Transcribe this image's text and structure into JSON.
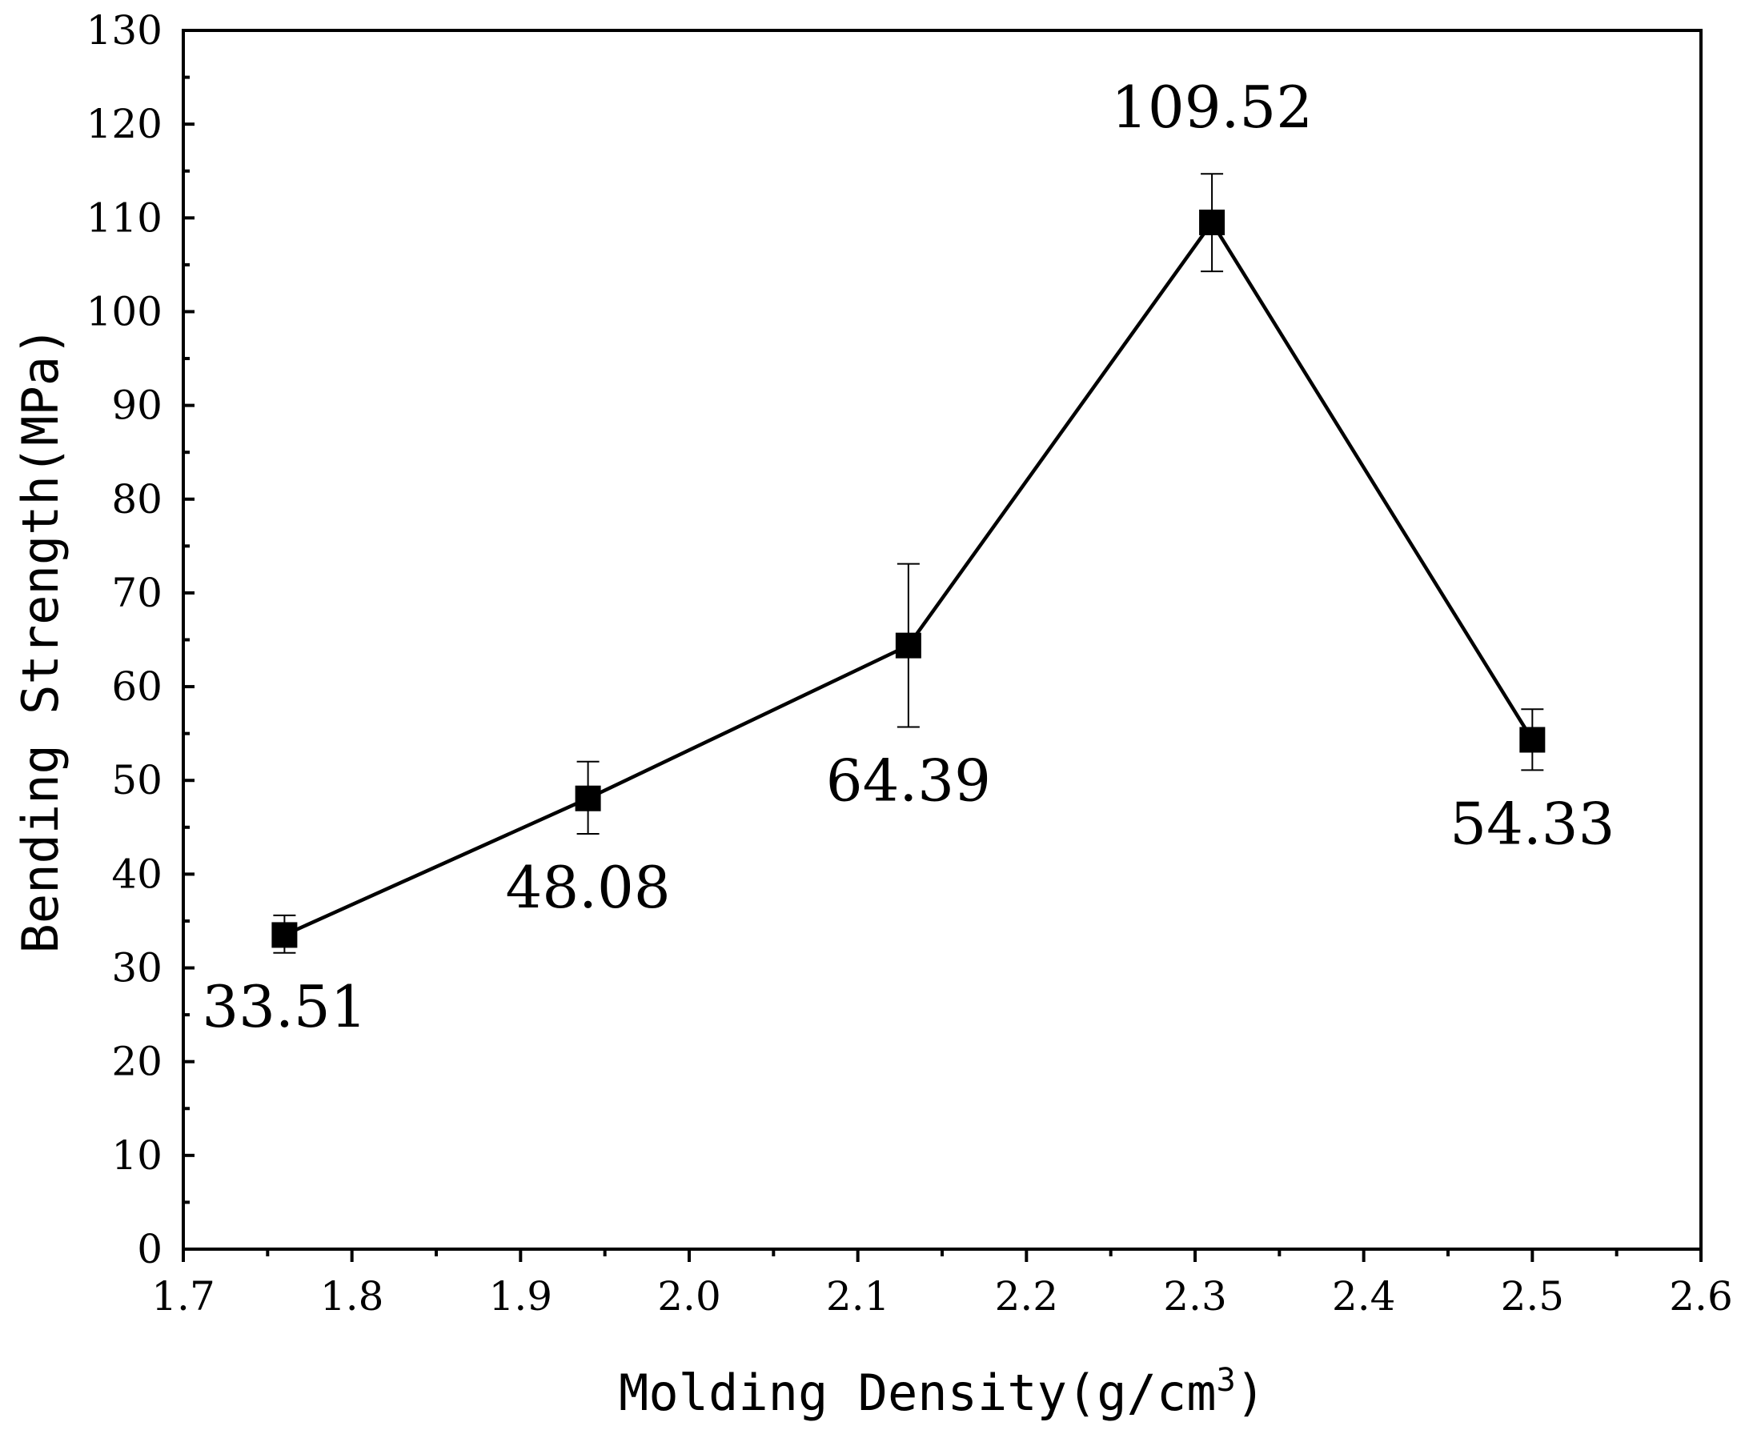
{
  "chart_data": {
    "type": "line",
    "xlabel_main": "Molding Density(g/cm",
    "xlabel_sup": "3",
    "xlabel_end": ")",
    "ylabel": "Bending Strength(MPa)",
    "xlim": [
      1.7,
      2.6
    ],
    "ylim": [
      0,
      130
    ],
    "x_ticks": [
      "1.7",
      "1.8",
      "1.9",
      "2.0",
      "2.1",
      "2.2",
      "2.3",
      "2.4",
      "2.5",
      "2.6"
    ],
    "y_ticks": [
      "0",
      "10",
      "20",
      "30",
      "40",
      "50",
      "60",
      "70",
      "80",
      "90",
      "100",
      "110",
      "120",
      "130"
    ],
    "grid": false,
    "series": [
      {
        "points": [
          {
            "x": 1.76,
            "y": 33.51,
            "err_low": 31.6,
            "err_high": 35.6,
            "label": "33.51",
            "label_pos": "below"
          },
          {
            "x": 1.94,
            "y": 48.08,
            "err_low": 44.3,
            "err_high": 52.0,
            "label": "48.08",
            "label_pos": "below"
          },
          {
            "x": 2.13,
            "y": 64.39,
            "err_low": 55.7,
            "err_high": 73.1,
            "label": "64.39",
            "label_pos": "below"
          },
          {
            "x": 2.31,
            "y": 109.52,
            "err_low": 104.3,
            "err_high": 114.7,
            "label": "109.52",
            "label_pos": "above"
          },
          {
            "x": 2.5,
            "y": 54.33,
            "err_low": 51.1,
            "err_high": 57.6,
            "label": "54.33",
            "label_pos": "below"
          }
        ]
      }
    ],
    "colors": {
      "line": "#000000",
      "marker": "#000000"
    }
  }
}
